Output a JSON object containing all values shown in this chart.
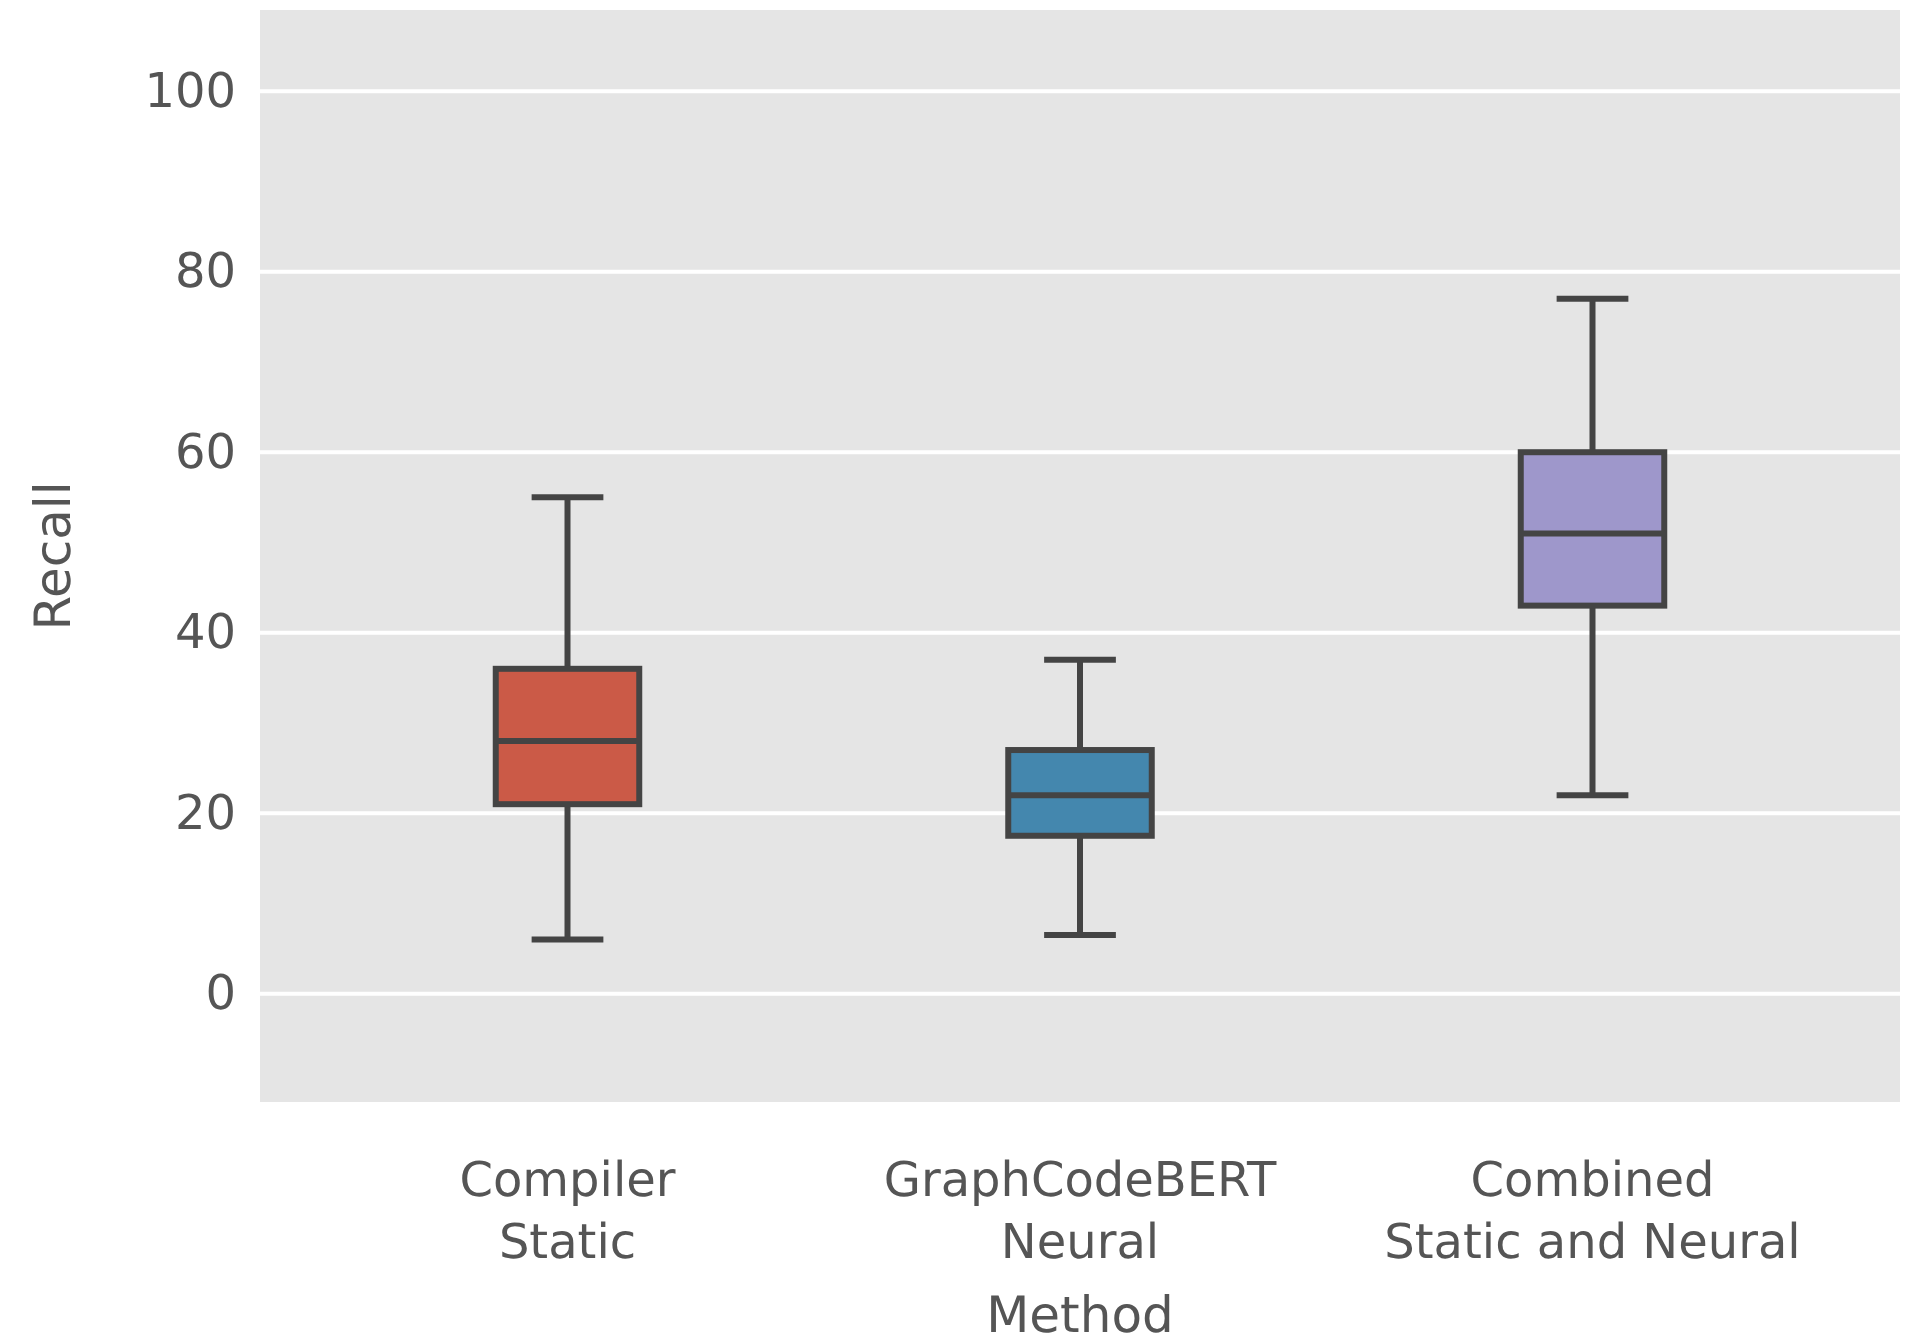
{
  "chart_data": {
    "type": "box",
    "xlabel": "Method",
    "ylabel": "Recall",
    "categories": [
      "Compiler\nStatic",
      "GraphCodeBERT\nNeural",
      "Combined\nStatic and Neural"
    ],
    "colors": [
      "#cb5a47",
      "#4487ae",
      "#9e97cb"
    ],
    "boxes": [
      {
        "low": 6,
        "q1": 21,
        "median": 28,
        "q3": 36,
        "high": 55
      },
      {
        "low": 6.5,
        "q1": 17.5,
        "median": 22,
        "q3": 27,
        "high": 37
      },
      {
        "low": 22,
        "q1": 43,
        "median": 51,
        "q3": 60,
        "high": 77
      }
    ],
    "ylim": [
      -12,
      109
    ],
    "yticks": [
      0,
      20,
      40,
      60,
      80,
      100
    ],
    "grid": "y"
  }
}
